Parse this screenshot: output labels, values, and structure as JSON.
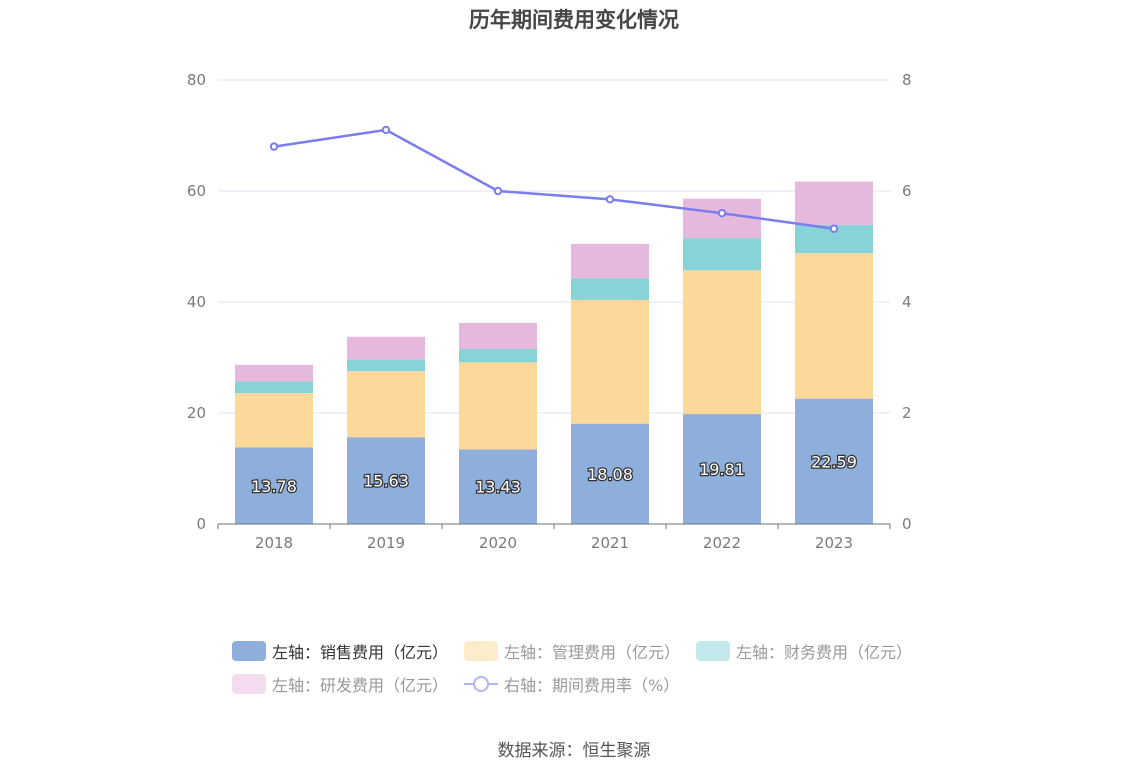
{
  "title": "历年期间费用变化情况",
  "source": "数据来源：恒生聚源",
  "colors": {
    "sales": "#8eaedb",
    "mgmt": "#fed79a",
    "finance": "#87d3d8",
    "rnd": "#e6b9dc",
    "rate": "#7b7ded",
    "grid": "#e3e6f2",
    "axis": "#6e7079",
    "tick_text": "#7a7a7a"
  },
  "legend": [
    {
      "key": "sales",
      "label": "左轴：销售费用（亿元）",
      "color": "#8eaedb",
      "text_color": "#333333",
      "kind": "rect"
    },
    {
      "key": "mgmt",
      "label": "左轴：管理费用（亿元）",
      "color": "#fdeccc",
      "text_color": "#999999",
      "kind": "rect"
    },
    {
      "key": "finance",
      "label": "左轴：财务费用（亿元）",
      "color": "#c4e9ec",
      "text_color": "#999999",
      "kind": "rect"
    },
    {
      "key": "rnd",
      "label": "左轴：研发费用（亿元）",
      "color": "#f3dcef",
      "text_color": "#999999",
      "kind": "rect"
    },
    {
      "key": "rate",
      "label": "右轴：期间费用率（%）",
      "color": "#b3b4f4",
      "text_color": "#999999",
      "kind": "line"
    }
  ],
  "chart_data": {
    "type": "bar",
    "stacked": true,
    "title": "历年期间费用变化情况",
    "categories": [
      "2018",
      "2019",
      "2020",
      "2021",
      "2022",
      "2023"
    ],
    "series": [
      {
        "key": "sales",
        "name": "左轴：销售费用（亿元）",
        "axis": "left",
        "values": [
          13.78,
          15.63,
          13.43,
          18.08,
          19.81,
          22.59
        ],
        "show_labels": true
      },
      {
        "key": "mgmt",
        "name": "左轴：管理费用（亿元）",
        "axis": "left",
        "values": [
          9.8,
          11.9,
          15.7,
          22.3,
          25.9,
          26.2
        ]
      },
      {
        "key": "finance",
        "name": "左轴：财务费用（亿元）",
        "axis": "left",
        "values": [
          2.1,
          2.1,
          2.4,
          3.9,
          5.8,
          5.1
        ]
      },
      {
        "key": "rnd",
        "name": "左轴：研发费用（亿元）",
        "axis": "left",
        "values": [
          3.0,
          4.1,
          4.7,
          6.2,
          7.1,
          7.8
        ]
      },
      {
        "key": "rate",
        "name": "右轴：期间费用率（%）",
        "axis": "right",
        "type": "line",
        "values": [
          6.8,
          7.1,
          6.0,
          5.85,
          5.6,
          5.32
        ]
      }
    ],
    "y_left": {
      "min": 0,
      "max": 80,
      "ticks": [
        0,
        20,
        40,
        60,
        80
      ]
    },
    "y_right": {
      "min": 0,
      "max": 8,
      "ticks": [
        0,
        2,
        4,
        6,
        8
      ]
    },
    "grid": true,
    "legend_position": "bottom"
  }
}
